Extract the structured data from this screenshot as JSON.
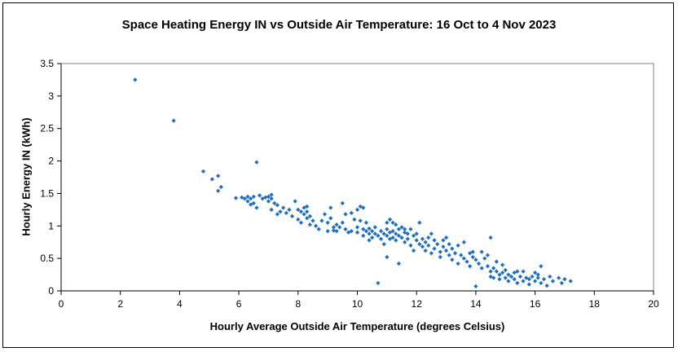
{
  "chart_data": {
    "type": "scatter",
    "title": "Space Heating Energy IN vs Outside Air Temperature: 16 Oct to 4 Nov 2023",
    "xlabel": "Hourly Average Outside Air Temperature (degrees Celsius)",
    "ylabel": "Hourly Energy IN (kWh)",
    "xlim": [
      0,
      20
    ],
    "ylim": [
      0,
      3.5
    ],
    "xticks": [
      "0",
      "2",
      "4",
      "6",
      "8",
      "10",
      "12",
      "14",
      "16",
      "18",
      "20"
    ],
    "yticks": [
      "0",
      "0.5",
      "1",
      "1.5",
      "2",
      "2.5",
      "3",
      "3.5"
    ],
    "grid": false,
    "legend": "none",
    "marker_color": "#1F6FC0",
    "points": [
      [
        2.5,
        3.25
      ],
      [
        3.8,
        2.62
      ],
      [
        4.8,
        1.84
      ],
      [
        5.1,
        1.72
      ],
      [
        5.3,
        1.77
      ],
      [
        5.3,
        1.54
      ],
      [
        5.4,
        1.6
      ],
      [
        6.6,
        1.98
      ],
      [
        5.9,
        1.43
      ],
      [
        6.1,
        1.44
      ],
      [
        6.2,
        1.42
      ],
      [
        6.3,
        1.38
      ],
      [
        6.3,
        1.45
      ],
      [
        6.4,
        1.42
      ],
      [
        6.4,
        1.33
      ],
      [
        6.5,
        1.35
      ],
      [
        6.6,
        1.28
      ],
      [
        6.7,
        1.47
      ],
      [
        6.8,
        1.42
      ],
      [
        6.9,
        1.44
      ],
      [
        7.0,
        1.45
      ],
      [
        7.0,
        1.38
      ],
      [
        7.1,
        1.42
      ],
      [
        7.1,
        1.25
      ],
      [
        7.2,
        1.35
      ],
      [
        7.3,
        1.32
      ],
      [
        7.3,
        1.18
      ],
      [
        7.4,
        1.22
      ],
      [
        7.5,
        1.28
      ],
      [
        7.6,
        1.2
      ],
      [
        7.7,
        1.25
      ],
      [
        7.8,
        1.15
      ],
      [
        7.9,
        1.38
      ],
      [
        8.0,
        1.25
      ],
      [
        8.0,
        1.1
      ],
      [
        8.1,
        1.22
      ],
      [
        8.1,
        1.05
      ],
      [
        8.2,
        1.18
      ],
      [
        8.2,
        1.28
      ],
      [
        8.3,
        1.12
      ],
      [
        8.3,
        1.22
      ],
      [
        8.4,
        1.02
      ],
      [
        8.4,
        1.15
      ],
      [
        8.5,
        1.08
      ],
      [
        8.6,
        1.0
      ],
      [
        8.7,
        0.95
      ],
      [
        8.8,
        1.08
      ],
      [
        8.9,
        1.18
      ],
      [
        9.0,
        1.05
      ],
      [
        9.0,
        0.92
      ],
      [
        9.1,
        1.12
      ],
      [
        9.2,
        0.98
      ],
      [
        9.2,
        0.93
      ],
      [
        9.3,
        1.02
      ],
      [
        9.3,
        0.92
      ],
      [
        9.4,
        0.98
      ],
      [
        9.5,
        1.35
      ],
      [
        9.5,
        1.05
      ],
      [
        9.6,
        0.95
      ],
      [
        9.6,
        1.18
      ],
      [
        9.7,
        0.9
      ],
      [
        9.8,
        1.2
      ],
      [
        9.9,
        1.1
      ],
      [
        10.0,
        1.25
      ],
      [
        10.0,
        0.98
      ],
      [
        10.0,
        0.9
      ],
      [
        10.1,
        1.3
      ],
      [
        10.1,
        1.08
      ],
      [
        10.2,
        0.85
      ],
      [
        10.2,
        1.28
      ],
      [
        10.2,
        0.95
      ],
      [
        10.3,
        0.92
      ],
      [
        10.3,
        1.05
      ],
      [
        10.4,
        0.88
      ],
      [
        10.4,
        0.78
      ],
      [
        10.5,
        0.92
      ],
      [
        10.5,
        0.82
      ],
      [
        10.6,
        0.98
      ],
      [
        10.6,
        0.88
      ],
      [
        10.7,
        0.85
      ],
      [
        10.7,
        0.12
      ],
      [
        10.8,
        0.92
      ],
      [
        10.8,
        0.8
      ],
      [
        10.9,
        0.88
      ],
      [
        10.9,
        0.72
      ],
      [
        11.0,
        0.95
      ],
      [
        11.0,
        0.85
      ],
      [
        11.0,
        0.52
      ],
      [
        11.1,
        1.1
      ],
      [
        11.1,
        0.9
      ],
      [
        11.1,
        0.8
      ],
      [
        11.2,
        1.05
      ],
      [
        11.2,
        0.92
      ],
      [
        11.2,
        0.82
      ],
      [
        11.3,
        1.02
      ],
      [
        11.3,
        0.88
      ],
      [
        11.3,
        0.78
      ],
      [
        11.4,
        0.95
      ],
      [
        11.4,
        0.85
      ],
      [
        11.4,
        0.42
      ],
      [
        11.5,
        0.98
      ],
      [
        11.5,
        0.82
      ],
      [
        11.6,
        0.9
      ],
      [
        11.6,
        0.75
      ],
      [
        11.7,
        0.88
      ],
      [
        11.7,
        0.8
      ],
      [
        11.8,
        0.95
      ],
      [
        11.8,
        0.7
      ],
      [
        11.9,
        0.85
      ],
      [
        11.9,
        0.62
      ],
      [
        12.0,
        0.88
      ],
      [
        12.0,
        0.78
      ],
      [
        12.1,
        0.72
      ],
      [
        12.1,
        1.05
      ],
      [
        12.2,
        0.8
      ],
      [
        12.2,
        0.68
      ],
      [
        12.3,
        0.75
      ],
      [
        12.3,
        0.62
      ],
      [
        12.4,
        0.7
      ],
      [
        12.5,
        0.88
      ],
      [
        12.5,
        0.58
      ],
      [
        12.6,
        0.78
      ],
      [
        12.6,
        0.65
      ],
      [
        12.7,
        0.72
      ],
      [
        12.8,
        0.6
      ],
      [
        12.8,
        0.52
      ],
      [
        12.9,
        0.68
      ],
      [
        13.0,
        0.62
      ],
      [
        13.0,
        0.82
      ],
      [
        13.1,
        0.55
      ],
      [
        13.2,
        0.65
      ],
      [
        13.2,
        0.48
      ],
      [
        13.3,
        0.58
      ],
      [
        13.4,
        0.7
      ],
      [
        13.4,
        0.42
      ],
      [
        13.5,
        0.55
      ],
      [
        13.6,
        0.5
      ],
      [
        13.6,
        0.75
      ],
      [
        13.7,
        0.45
      ],
      [
        13.8,
        0.58
      ],
      [
        13.8,
        0.38
      ],
      [
        13.9,
        0.52
      ],
      [
        14.0,
        0.48
      ],
      [
        14.0,
        0.07
      ],
      [
        14.1,
        0.42
      ],
      [
        14.2,
        0.6
      ],
      [
        14.2,
        0.35
      ],
      [
        14.3,
        0.5
      ],
      [
        14.4,
        0.38
      ],
      [
        14.5,
        0.82
      ],
      [
        14.5,
        0.3
      ],
      [
        14.5,
        0.22
      ],
      [
        14.6,
        0.35
      ],
      [
        14.6,
        0.2
      ],
      [
        14.7,
        0.3
      ],
      [
        14.7,
        0.45
      ],
      [
        14.8,
        0.25
      ],
      [
        14.8,
        0.18
      ],
      [
        14.9,
        0.28
      ],
      [
        15.0,
        0.32
      ],
      [
        15.0,
        0.2
      ],
      [
        15.1,
        0.25
      ],
      [
        15.1,
        0.15
      ],
      [
        15.2,
        0.22
      ],
      [
        15.3,
        0.28
      ],
      [
        15.3,
        0.18
      ],
      [
        15.4,
        0.12
      ],
      [
        15.5,
        0.22
      ],
      [
        15.6,
        0.3
      ],
      [
        15.6,
        0.15
      ],
      [
        15.7,
        0.2
      ],
      [
        15.8,
        0.18
      ],
      [
        15.8,
        0.1
      ],
      [
        15.9,
        0.22
      ],
      [
        16.0,
        0.15
      ],
      [
        16.0,
        0.28
      ],
      [
        16.1,
        0.2
      ],
      [
        16.2,
        0.12
      ],
      [
        16.2,
        0.38
      ],
      [
        16.3,
        0.18
      ],
      [
        16.4,
        0.08
      ],
      [
        16.5,
        0.22
      ],
      [
        16.6,
        0.15
      ],
      [
        16.8,
        0.2
      ],
      [
        16.9,
        0.12
      ],
      [
        17.0,
        0.18
      ],
      [
        17.2,
        0.15
      ],
      [
        6.5,
        1.45
      ],
      [
        7.1,
        1.48
      ],
      [
        8.3,
        1.3
      ],
      [
        9.1,
        1.28
      ],
      [
        9.8,
        0.92
      ],
      [
        10.4,
        0.96
      ],
      [
        11.0,
        1.05
      ],
      [
        11.6,
        0.95
      ],
      [
        12.4,
        0.82
      ],
      [
        13.1,
        0.72
      ],
      [
        13.9,
        0.6
      ],
      [
        14.4,
        0.55
      ],
      [
        14.9,
        0.4
      ],
      [
        15.4,
        0.3
      ],
      [
        16.1,
        0.25
      ],
      [
        12.9,
        0.78
      ]
    ]
  }
}
